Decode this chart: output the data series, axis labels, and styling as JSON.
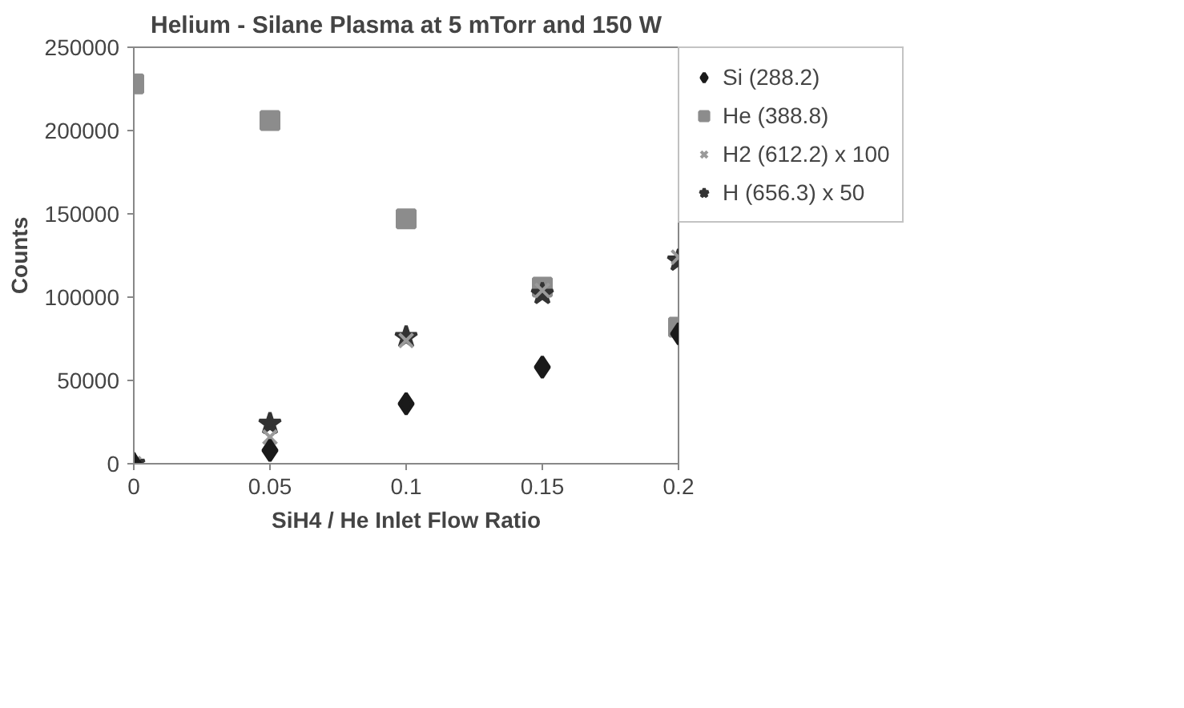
{
  "chart_data": {
    "type": "scatter",
    "title": "Helium - Silane Plasma at 5 mTorr and 150 W",
    "xlabel": "SiH4 / He Inlet Flow Ratio",
    "ylabel": "Counts",
    "x": [
      0,
      0.05,
      0.1,
      0.15,
      0.2
    ],
    "xlim": [
      0,
      0.2
    ],
    "xticks": [
      0,
      0.05,
      0.1,
      0.15,
      0.2
    ],
    "ylim": [
      0,
      250000
    ],
    "yticks": [
      0,
      50000,
      100000,
      150000,
      200000,
      250000
    ],
    "legend": "right",
    "series": [
      {
        "name": "Si (288.2)",
        "color": "#1a1a1a",
        "marker": "diamond",
        "values": [
          0,
          8000,
          36000,
          58000,
          78000
        ]
      },
      {
        "name": "He (388.8)",
        "color": "#8c8c8c",
        "marker": "square",
        "values": [
          228000,
          206000,
          147000,
          106000,
          82000
        ]
      },
      {
        "name": "H2 (612.2) x 100",
        "color": "#9a9a9a",
        "marker": "cross",
        "values": [
          null,
          16000,
          74000,
          104000,
          124000
        ]
      },
      {
        "name": "H (656.3) x 50",
        "color": "#333333",
        "marker": "star",
        "values": [
          0,
          24000,
          76000,
          102000,
          122000
        ]
      }
    ]
  }
}
